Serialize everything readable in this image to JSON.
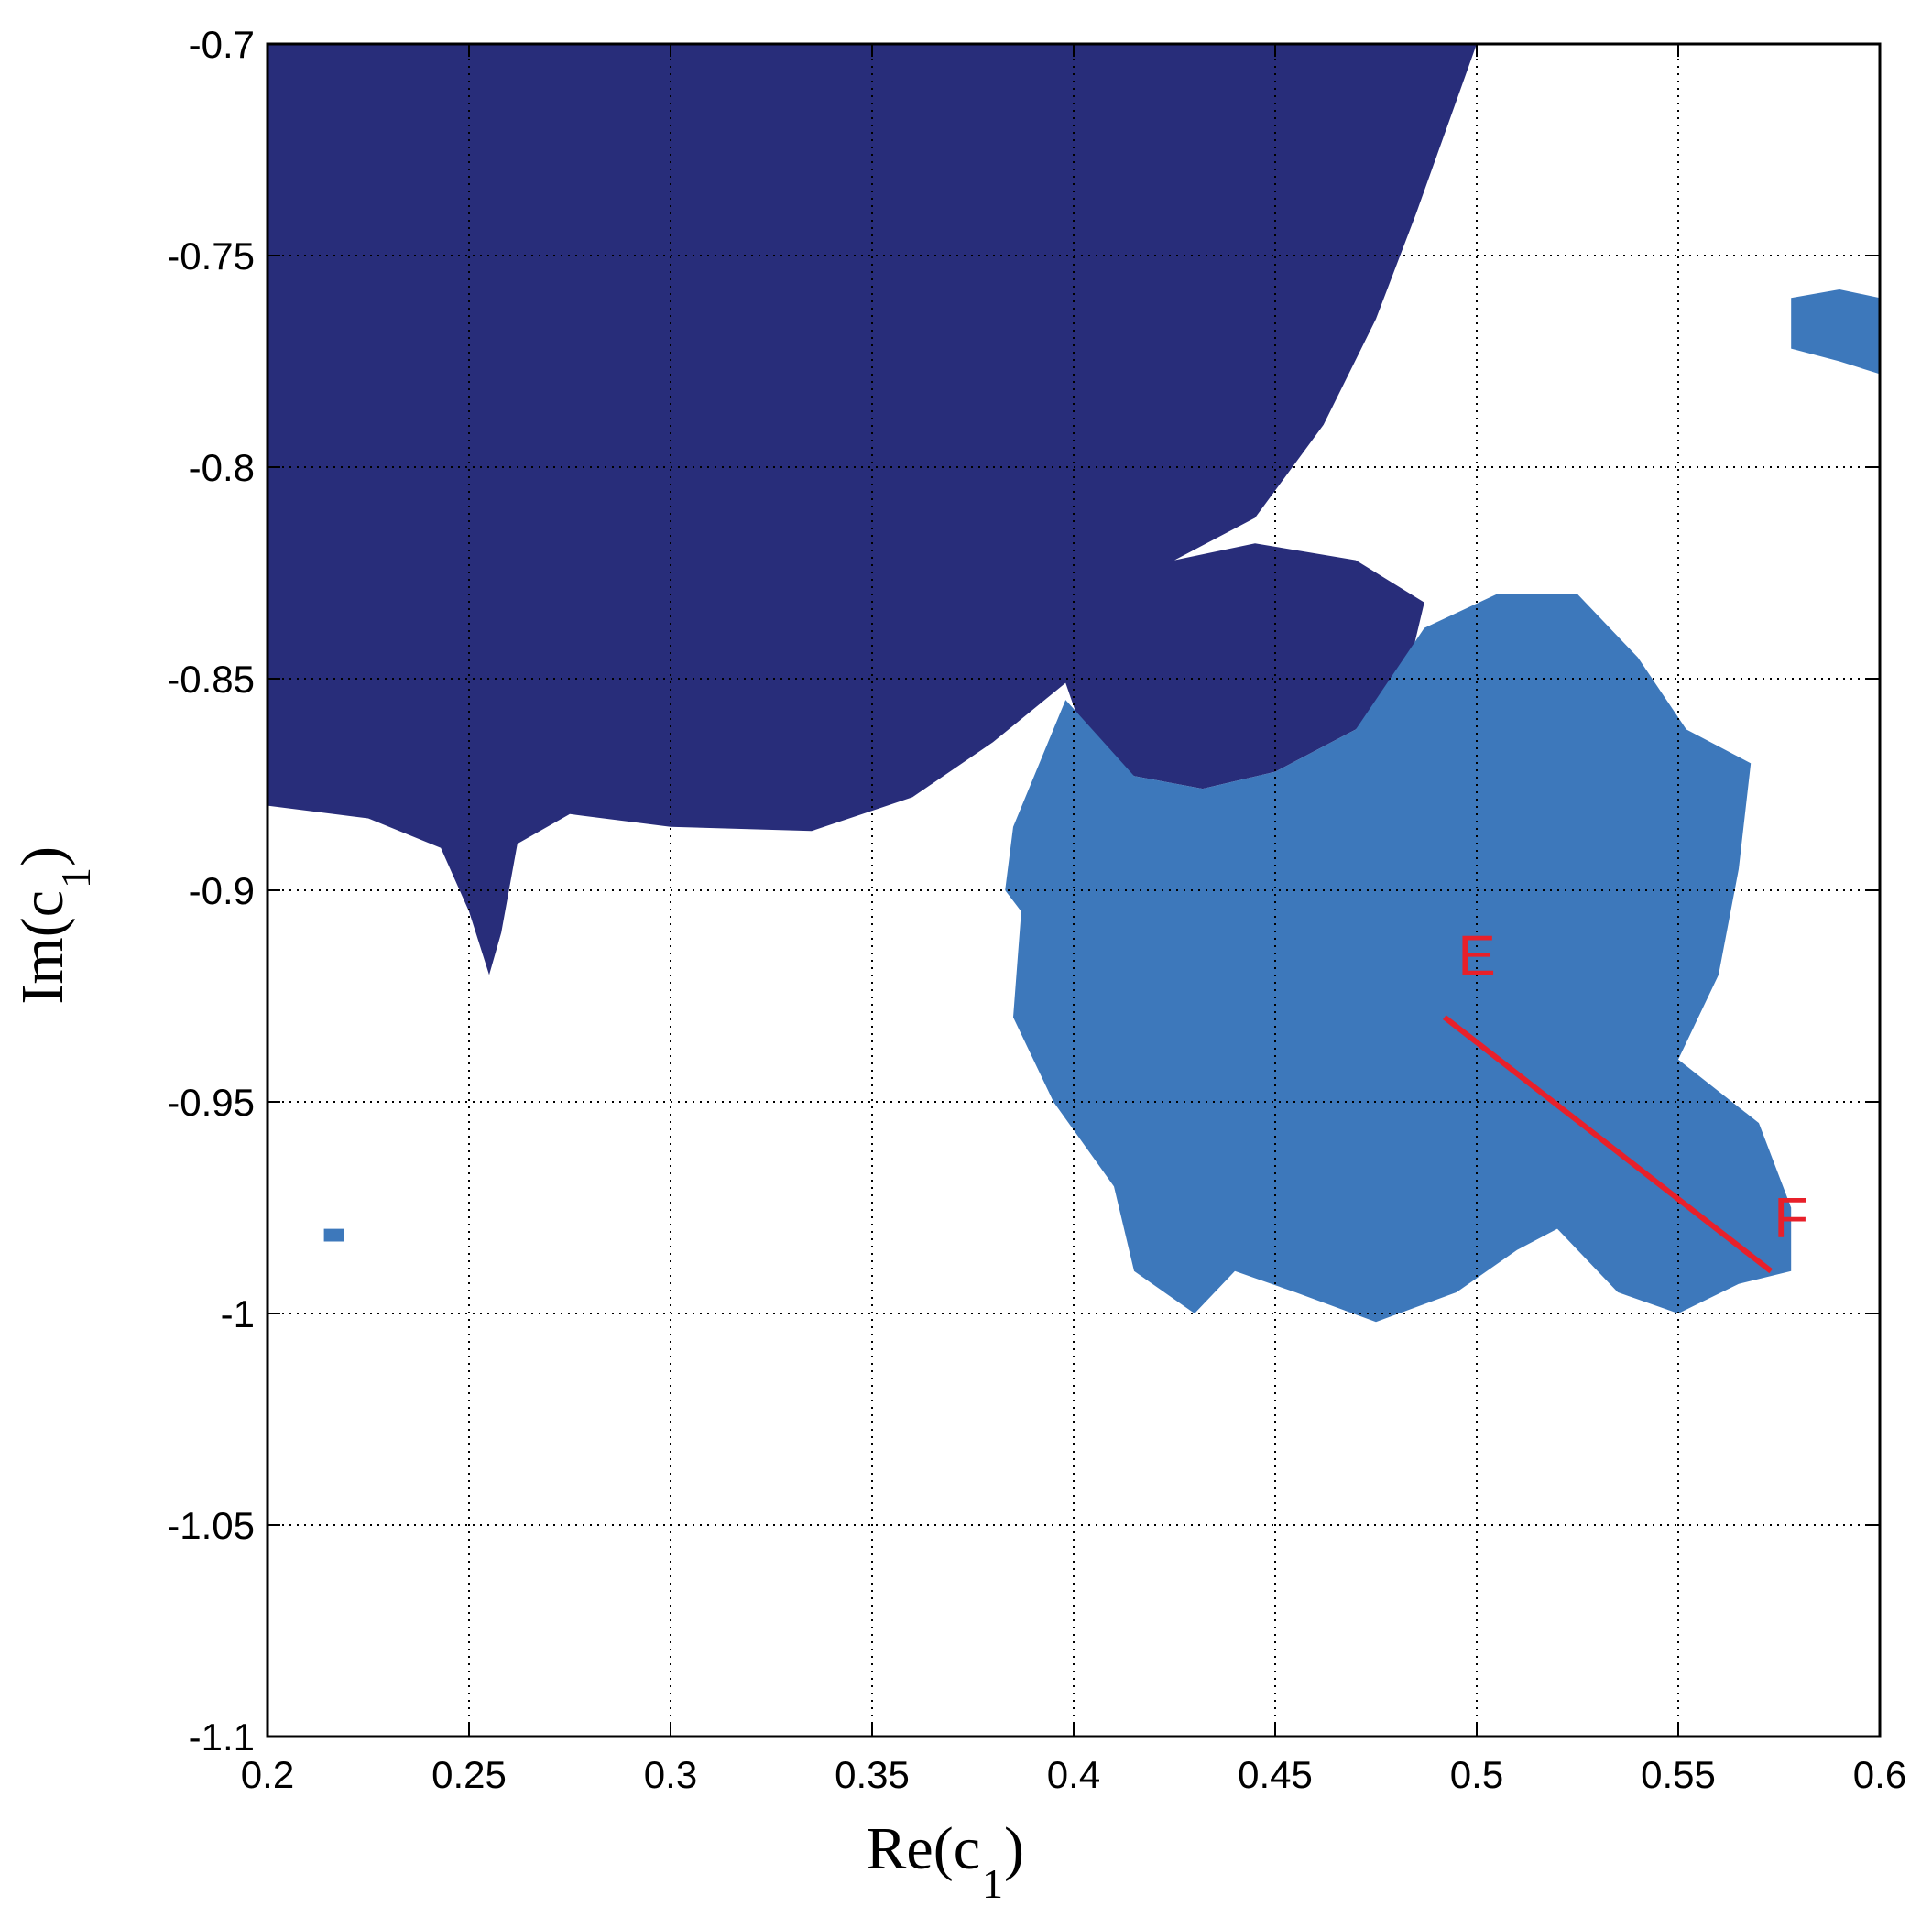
{
  "chart_data": {
    "type": "heatmap",
    "title": "",
    "xlabel": {
      "main": "Re(c",
      "sub": "1",
      "close": ")"
    },
    "ylabel": {
      "main": "Im(c",
      "sub": "1",
      "close": ")"
    },
    "xlim": [
      0.2,
      0.6
    ],
    "ylim": [
      -1.1,
      -0.7
    ],
    "xticks": [
      0.2,
      0.25,
      0.3,
      0.35,
      0.4,
      0.45,
      0.5,
      0.55,
      0.6
    ],
    "xtick_labels": [
      "0.2",
      "0.25",
      "0.3",
      "0.35",
      "0.4",
      "0.45",
      "0.5",
      "0.55",
      "0.6"
    ],
    "yticks": [
      -0.7,
      -0.75,
      -0.8,
      -0.85,
      -0.9,
      -0.95,
      -1,
      -1.05,
      -1.1
    ],
    "ytick_labels": [
      "-0.7",
      "-0.75",
      "-0.8",
      "-0.85",
      "-0.9",
      "-0.95",
      "-1",
      "-1.05",
      "-1.1"
    ],
    "grid": true,
    "colors": {
      "region_dark": "#282d7a",
      "region_light": "#3d78bb",
      "background": "#ffffff",
      "segment": "#e8202a"
    },
    "regions": [
      {
        "name": "dark",
        "polygon": [
          [
            0.2,
            -0.7
          ],
          [
            0.5,
            -0.7
          ],
          [
            0.485,
            -0.74
          ],
          [
            0.475,
            -0.765
          ],
          [
            0.462,
            -0.79
          ],
          [
            0.445,
            -0.812
          ],
          [
            0.425,
            -0.822
          ],
          [
            0.445,
            -0.818
          ],
          [
            0.47,
            -0.822
          ],
          [
            0.487,
            -0.832
          ],
          [
            0.483,
            -0.848
          ],
          [
            0.47,
            -0.862
          ],
          [
            0.45,
            -0.872
          ],
          [
            0.432,
            -0.876
          ],
          [
            0.415,
            -0.873
          ],
          [
            0.402,
            -0.862
          ],
          [
            0.398,
            -0.851
          ],
          [
            0.38,
            -0.865
          ],
          [
            0.36,
            -0.878
          ],
          [
            0.335,
            -0.886
          ],
          [
            0.3,
            -0.885
          ],
          [
            0.275,
            -0.882
          ],
          [
            0.262,
            -0.889
          ],
          [
            0.258,
            -0.91
          ],
          [
            0.255,
            -0.92
          ],
          [
            0.25,
            -0.905
          ],
          [
            0.243,
            -0.89
          ],
          [
            0.225,
            -0.883
          ],
          [
            0.2,
            -0.88
          ]
        ]
      },
      {
        "name": "light-main",
        "polygon": [
          [
            0.398,
            -0.855
          ],
          [
            0.415,
            -0.873
          ],
          [
            0.432,
            -0.876
          ],
          [
            0.45,
            -0.872
          ],
          [
            0.47,
            -0.862
          ],
          [
            0.487,
            -0.838
          ],
          [
            0.505,
            -0.83
          ],
          [
            0.525,
            -0.83
          ],
          [
            0.54,
            -0.845
          ],
          [
            0.552,
            -0.862
          ],
          [
            0.568,
            -0.87
          ],
          [
            0.565,
            -0.895
          ],
          [
            0.56,
            -0.92
          ],
          [
            0.55,
            -0.94
          ],
          [
            0.57,
            -0.955
          ],
          [
            0.578,
            -0.975
          ],
          [
            0.578,
            -0.99
          ],
          [
            0.565,
            -0.993
          ],
          [
            0.55,
            -1.0
          ],
          [
            0.535,
            -0.995
          ],
          [
            0.52,
            -0.98
          ],
          [
            0.51,
            -0.985
          ],
          [
            0.495,
            -0.995
          ],
          [
            0.475,
            -1.002
          ],
          [
            0.455,
            -0.995
          ],
          [
            0.44,
            -0.99
          ],
          [
            0.43,
            -1.0
          ],
          [
            0.415,
            -0.99
          ],
          [
            0.41,
            -0.97
          ],
          [
            0.395,
            -0.95
          ],
          [
            0.385,
            -0.93
          ],
          [
            0.387,
            -0.905
          ],
          [
            0.383,
            -0.9
          ],
          [
            0.385,
            -0.885
          ]
        ]
      },
      {
        "name": "light-right-blob",
        "polygon": [
          [
            0.578,
            -0.76
          ],
          [
            0.59,
            -0.758
          ],
          [
            0.6,
            -0.76
          ],
          [
            0.6,
            -0.778
          ],
          [
            0.59,
            -0.775
          ],
          [
            0.578,
            -0.772
          ]
        ]
      },
      {
        "name": "light-small-dot",
        "polygon": [
          [
            0.214,
            -0.98
          ],
          [
            0.219,
            -0.98
          ],
          [
            0.219,
            -0.983
          ],
          [
            0.214,
            -0.983
          ]
        ]
      }
    ],
    "annotations": [
      {
        "text": "E",
        "x": 0.5,
        "y": -0.92
      },
      {
        "text": "F",
        "x": 0.578,
        "y": -0.982
      }
    ],
    "segment": {
      "from": [
        0.492,
        -0.93
      ],
      "to": [
        0.573,
        -0.99
      ]
    }
  }
}
